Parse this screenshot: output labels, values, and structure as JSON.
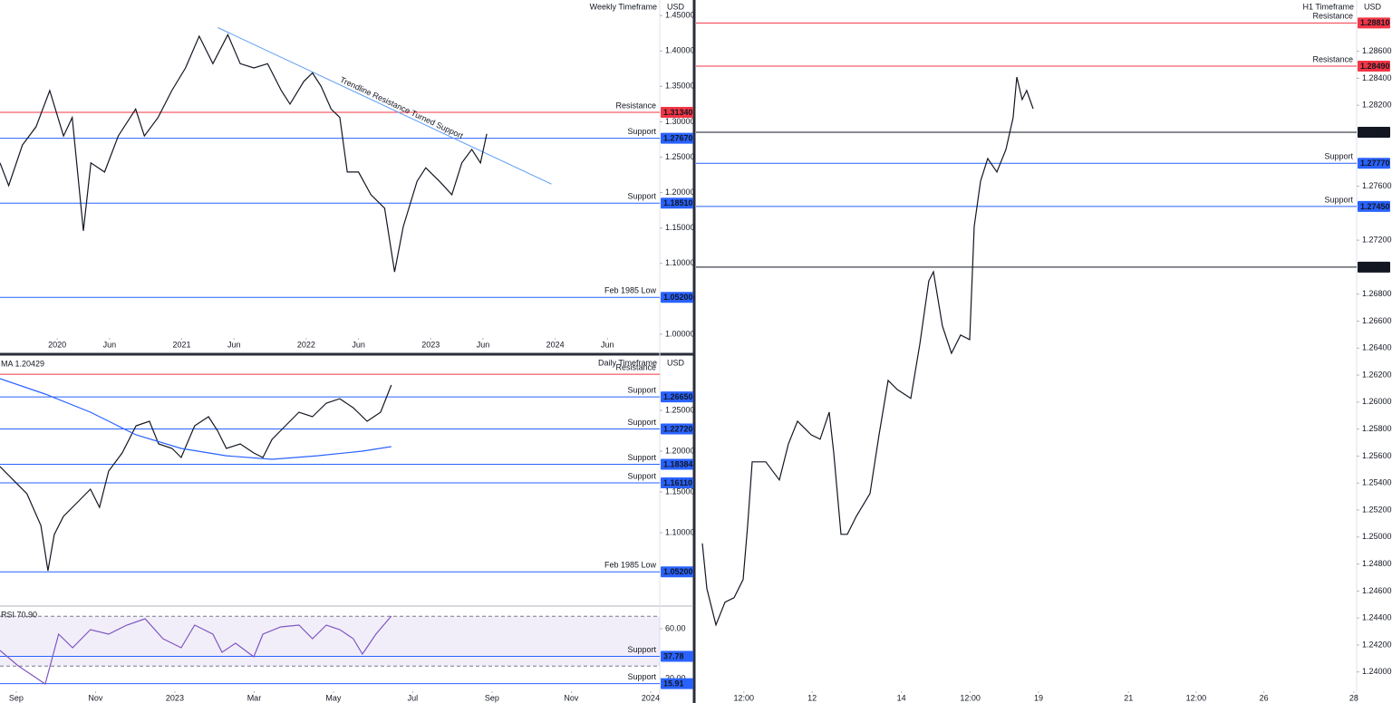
{
  "chart_data": [
    {
      "type": "line",
      "title": "Weekly Timeframe",
      "currency": "USD",
      "xlim": [
        2019.54,
        2024.84
      ],
      "xticks": [
        2020,
        {
          "value": 2020.42,
          "label": "Jun"
        },
        2021,
        {
          "value": 2021.42,
          "label": "Jun"
        },
        2022,
        {
          "value": 2022.42,
          "label": "Jun"
        },
        2023,
        {
          "value": 2023.42,
          "label": "Jun"
        },
        2024,
        {
          "value": 2024.42,
          "label": "Jun"
        }
      ],
      "ylim": [
        0.973,
        1.472
      ],
      "yticks": [
        {
          "value": 1.0,
          "label": "1.00000"
        },
        {
          "value": 1.05,
          "label": "1.05000"
        },
        {
          "value": 1.1,
          "label": "1.10000"
        },
        {
          "value": 1.15,
          "label": "1.15000"
        },
        {
          "value": 1.2,
          "label": "1.20000"
        },
        {
          "value": 1.25,
          "label": "1.25000"
        },
        {
          "value": 1.3,
          "label": "1.30000"
        },
        {
          "value": 1.35,
          "label": "1.35000"
        },
        {
          "value": 1.4,
          "label": "1.40000"
        },
        {
          "value": 1.45,
          "label": "1.45000"
        }
      ],
      "levels": [
        {
          "label": "Resistance",
          "value": 1.3134,
          "value_label": "1.31340",
          "color": "#f23645"
        },
        {
          "label": "Support",
          "value": 1.2767,
          "value_label": "1.27670",
          "color": "#2962ff"
        },
        {
          "label": "Support",
          "value": 1.1851,
          "value_label": "1.18510",
          "color": "#2962ff"
        },
        {
          "label": "Feb 1985 Low",
          "value": 1.052,
          "value_label": "1.05200",
          "color": "#2962ff"
        }
      ],
      "trendline": {
        "x": [
          2021.29,
          2023.97
        ],
        "values": [
          1.433,
          1.212
        ],
        "color": "#5b9cf6"
      },
      "trendline_label": "Trendline Resistance Turned Support",
      "series": [
        {
          "color": "#131722",
          "x": [
            2019.54,
            2019.61,
            2019.72,
            2019.83,
            2019.94,
            2020.05,
            2020.12,
            2020.21,
            2020.27,
            2020.38,
            2020.49,
            2020.63,
            2020.7,
            2020.81,
            2020.92,
            2021.03,
            2021.14,
            2021.25,
            2021.37,
            2021.47,
            2021.58,
            2021.69,
            2021.8,
            2021.87,
            2021.98,
            2022.05,
            2022.12,
            2022.2,
            2022.27,
            2022.33,
            2022.42,
            2022.52,
            2022.63,
            2022.71,
            2022.78,
            2022.89,
            2022.96,
            2023.07,
            2023.17,
            2023.25,
            2023.33,
            2023.4,
            2023.45
          ],
          "values": [
            1.242,
            1.21,
            1.267,
            1.293,
            1.344,
            1.28,
            1.306,
            1.146,
            1.242,
            1.229,
            1.28,
            1.318,
            1.28,
            1.306,
            1.344,
            1.376,
            1.421,
            1.382,
            1.423,
            1.382,
            1.376,
            1.382,
            1.344,
            1.325,
            1.357,
            1.369,
            1.35,
            1.318,
            1.306,
            1.229,
            1.229,
            1.197,
            1.178,
            1.088,
            1.152,
            1.216,
            1.235,
            1.216,
            1.197,
            1.242,
            1.261,
            1.242,
            1.283
          ]
        }
      ]
    },
    {
      "type": "line",
      "title": "Daily Timeframe",
      "currency": "USD",
      "indicator": "MA 1.20429",
      "xlim": [
        -0.41,
        16.23
      ],
      "ylim": [
        1.0111,
        1.3167
      ],
      "yticks": [
        {
          "value": 1.1,
          "label": "1.10000"
        },
        {
          "value": 1.15,
          "label": "1.15000"
        },
        {
          "value": 1.2,
          "label": "1.20000"
        },
        {
          "value": 1.25,
          "label": "1.25000"
        }
      ],
      "levels": [
        {
          "label": "Resistance",
          "value": 1.2944,
          "color": "#f23645"
        },
        {
          "label": "Support",
          "value": 1.2665,
          "value_label": "1.26650",
          "color": "#2962ff"
        },
        {
          "label": "Support",
          "value": 1.2272,
          "value_label": "1.22720",
          "color": "#2962ff"
        },
        {
          "label": "Support",
          "value": 1.18384,
          "value_label": "1.18384",
          "color": "#2962ff"
        },
        {
          "label": "Support",
          "value": 1.1611,
          "value_label": "1.16110",
          "color": "#2962ff"
        },
        {
          "label": "Feb 1985 Low",
          "value": 1.052,
          "value_label": "1.05200",
          "color": "#2962ff"
        }
      ],
      "series": [
        {
          "color": "#131722",
          "x": [
            -0.41,
            -0.07,
            0.27,
            0.62,
            0.8,
            0.96,
            1.19,
            1.53,
            1.87,
            2.1,
            2.33,
            2.67,
            3.02,
            3.36,
            3.59,
            3.93,
            4.16,
            4.5,
            4.85,
            5.07,
            5.3,
            5.65,
            5.99,
            6.22,
            6.45,
            6.79,
            7.13,
            7.47,
            7.82,
            8.16,
            8.5,
            8.85,
            9.19,
            9.46
          ],
          "values": [
            1.1811,
            1.1644,
            1.1478,
            1.1089,
            1.0533,
            1.0978,
            1.12,
            1.1367,
            1.1533,
            1.1311,
            1.1756,
            1.1978,
            1.2311,
            1.2367,
            1.2089,
            1.2033,
            1.1922,
            1.2311,
            1.2422,
            1.2256,
            1.2033,
            1.2089,
            1.1978,
            1.1922,
            1.2144,
            1.2311,
            1.2478,
            1.2422,
            1.2589,
            1.2644,
            1.2533,
            1.2367,
            1.2478,
            1.2811
          ]
        },
        {
          "color": "#2962ff",
          "x": [
            -0.41,
            0.73,
            1.87,
            3.02,
            4.16,
            5.3,
            6.45,
            7.59,
            8.73,
            9.46
          ],
          "values": [
            1.2889,
            1.27,
            1.2478,
            1.22,
            1.2033,
            1.1944,
            1.19,
            1.1944,
            1.2,
            1.2056
          ]
        }
      ]
    },
    {
      "type": "line",
      "indicator": "RSI 70.90",
      "xlim": [
        -0.41,
        16.23
      ],
      "xticks": [
        {
          "value": 0,
          "label": "Sep"
        },
        {
          "value": 2,
          "label": "Nov"
        },
        {
          "value": 4,
          "label": "2023"
        },
        {
          "value": 6,
          "label": "Mar"
        },
        {
          "value": 8,
          "label": "May"
        },
        {
          "value": 10,
          "label": "Jul"
        },
        {
          "value": 12,
          "label": "Sep"
        },
        {
          "value": 14,
          "label": "Nov"
        },
        {
          "value": 16,
          "label": "2024"
        }
      ],
      "ylim": [
        0.36,
        77.45
      ],
      "yticks": [
        {
          "value": 20,
          "label": "20.00"
        },
        {
          "value": 60,
          "label": "60.00"
        }
      ],
      "band": [
        30,
        70
      ],
      "levels": [
        {
          "label": "Support",
          "value": 37.78,
          "value_label": "37.78",
          "color": "#2962ff"
        },
        {
          "label": "Support",
          "value": 15.91,
          "value_label": "15.91",
          "color": "#2962ff"
        }
      ],
      "series": [
        {
          "color": "#7e57c2",
          "x": [
            -0.41,
            0.05,
            0.39,
            0.73,
            1.07,
            1.42,
            1.87,
            2.33,
            2.79,
            3.25,
            3.7,
            4.16,
            4.5,
            4.96,
            5.19,
            5.53,
            5.99,
            6.22,
            6.67,
            7.13,
            7.47,
            7.82,
            8.16,
            8.5,
            8.73,
            9.07,
            9.46
          ],
          "values": [
            42.55,
            30.18,
            22.91,
            15.64,
            55.64,
            44.73,
            59.27,
            55.64,
            62.91,
            68.0,
            52.0,
            44.73,
            62.91,
            55.64,
            41.09,
            48.36,
            37.45,
            55.64,
            61.45,
            62.91,
            52.0,
            62.91,
            59.27,
            52.0,
            39.64,
            55.64,
            70.18
          ]
        }
      ]
    },
    {
      "type": "line",
      "title": "H1 Timeframe",
      "currency": "USD",
      "xlim": [
        0,
        116.1
      ],
      "xticks": [
        {
          "value": 8.4,
          "label": "12:00"
        },
        {
          "value": 20.4,
          "label": "12"
        },
        {
          "value": 36.1,
          "label": "14"
        },
        {
          "value": 48.2,
          "label": "12:00"
        },
        {
          "value": 60.2,
          "label": "19"
        },
        {
          "value": 76.0,
          "label": "21"
        },
        {
          "value": 87.9,
          "label": "12:00"
        },
        {
          "value": 99.8,
          "label": "26"
        },
        {
          "value": 115.6,
          "label": "28"
        }
      ],
      "ylim": [
        1.2377,
        1.2898
      ],
      "yticks": [
        {
          "value": 1.24,
          "label": "1.24000"
        },
        {
          "value": 1.242,
          "label": "1.24200"
        },
        {
          "value": 1.244,
          "label": "1.24400"
        },
        {
          "value": 1.246,
          "label": "1.24600"
        },
        {
          "value": 1.248,
          "label": "1.24800"
        },
        {
          "value": 1.25,
          "label": "1.25000"
        },
        {
          "value": 1.252,
          "label": "1.25200"
        },
        {
          "value": 1.254,
          "label": "1.25400"
        },
        {
          "value": 1.256,
          "label": "1.25600"
        },
        {
          "value": 1.258,
          "label": "1.25800"
        },
        {
          "value": 1.26,
          "label": "1.26000"
        },
        {
          "value": 1.262,
          "label": "1.26200"
        },
        {
          "value": 1.264,
          "label": "1.26400"
        },
        {
          "value": 1.266,
          "label": "1.26600"
        },
        {
          "value": 1.268,
          "label": "1.26800"
        },
        {
          "value": 1.272,
          "label": "1.27200"
        },
        {
          "value": 1.276,
          "label": "1.27600"
        },
        {
          "value": 1.282,
          "label": "1.28200"
        },
        {
          "value": 1.284,
          "label": "1.28400"
        },
        {
          "value": 1.286,
          "label": "1.28600"
        }
      ],
      "levels": [
        {
          "label": "Resistance",
          "value": 1.2881,
          "value_label": "1.28810",
          "color": "#f23645"
        },
        {
          "label": "Resistance",
          "value": 1.2849,
          "value_label": "1.28490",
          "color": "#f23645"
        },
        {
          "value": 1.28,
          "value_label": "1.28000",
          "color": "#131722"
        },
        {
          "label": "Support",
          "value": 1.2777,
          "value_label": "1.27770",
          "color": "#2962ff"
        },
        {
          "label": "Support",
          "value": 1.2745,
          "value_label": "1.27450",
          "color": "#2962ff"
        },
        {
          "value": 1.27,
          "value_label": "1.27000",
          "color": "#131722"
        }
      ],
      "series": [
        {
          "color": "#131722",
          "x": [
            1.11,
            1.91,
            3.5,
            5.1,
            6.69,
            8.28,
            9.08,
            9.87,
            12.26,
            14.65,
            16.24,
            17.83,
            20.22,
            21.82,
            23.41,
            24.2,
            25.48,
            26.59,
            28.18,
            30.57,
            32.17,
            33.76,
            35.35,
            37.74,
            39.33,
            40.92,
            41.72,
            43.31,
            44.9,
            46.5,
            48.09,
            48.89,
            50.0,
            51.27,
            52.87,
            54.46,
            55.73,
            56.37,
            57.32,
            58.12,
            59.24
          ],
          "values": [
            1.24953,
            1.24617,
            1.24349,
            1.24517,
            1.2455,
            1.24685,
            1.25087,
            1.25557,
            1.25557,
            1.25423,
            1.25691,
            1.25859,
            1.25758,
            1.25725,
            1.25926,
            1.25624,
            1.2502,
            1.2502,
            1.25154,
            1.25322,
            1.25758,
            1.26161,
            1.26094,
            1.26027,
            1.2643,
            1.26899,
            1.26966,
            1.26564,
            1.26362,
            1.26497,
            1.26463,
            1.27302,
            1.27638,
            1.27805,
            1.27705,
            1.27872,
            1.28107,
            1.28409,
            1.28242,
            1.28309,
            1.28174
          ]
        }
      ]
    }
  ]
}
